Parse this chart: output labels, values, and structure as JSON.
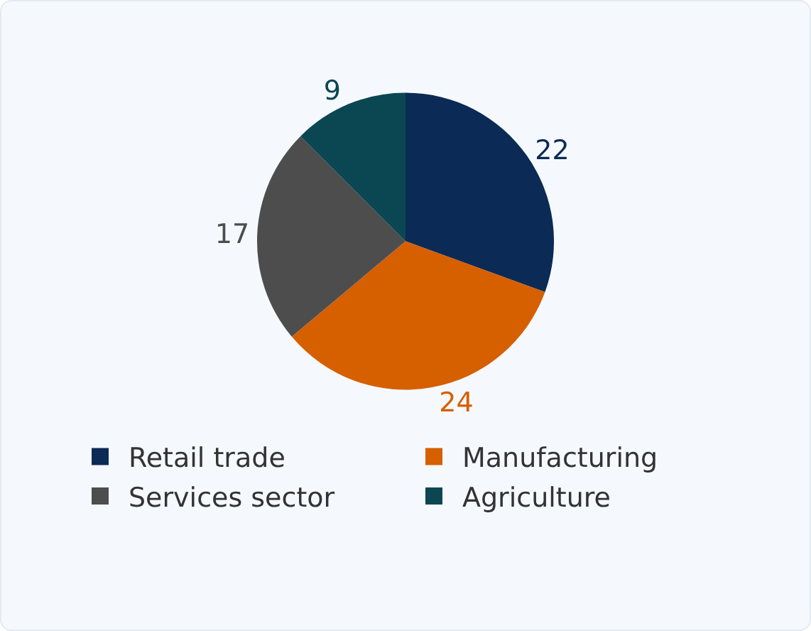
{
  "chart_data": {
    "type": "pie",
    "categories": [
      "Retail trade",
      "Manufacturing",
      "Services sector",
      "Agriculture"
    ],
    "values": [
      22,
      24,
      17,
      9
    ],
    "colors": [
      "#0b2a55",
      "#d65f00",
      "#4d4d4d",
      "#0a4752"
    ],
    "data_labels": true,
    "legend": "bottom"
  }
}
